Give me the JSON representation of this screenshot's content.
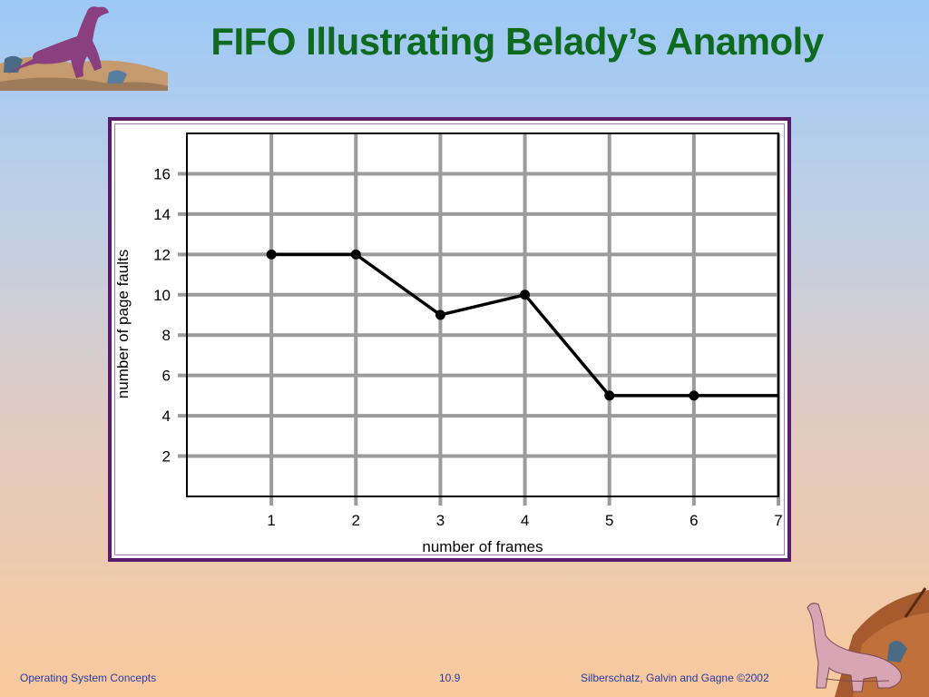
{
  "slide": {
    "title": "FIFO Illustrating Belady’s Anamoly",
    "footer_left": "Operating System Concepts",
    "footer_center": "10.9",
    "footer_right": "Silberschatz, Galvin and  Gagne ©2002"
  },
  "colors": {
    "title": "#0e6a1f",
    "frame": "#5a1a6e",
    "grid": "#9b9b9b",
    "line": "#000000",
    "footer": "#2a3aa6"
  },
  "chart_data": {
    "type": "line",
    "title": "",
    "xlabel": "number of frames",
    "ylabel": "number of page faults",
    "x_ticks": [
      1,
      2,
      3,
      4,
      5,
      6,
      7
    ],
    "y_ticks": [
      2,
      4,
      6,
      8,
      10,
      12,
      14,
      16
    ],
    "xlim": [
      0,
      7
    ],
    "ylim": [
      0,
      18
    ],
    "grid": true,
    "series": [
      {
        "x": [
          1,
          2,
          3,
          4,
          5,
          6,
          7
        ],
        "y": [
          12,
          12,
          9,
          10,
          5,
          5,
          5
        ],
        "markers_x": [
          1,
          2,
          3,
          4,
          5,
          6
        ]
      }
    ]
  }
}
